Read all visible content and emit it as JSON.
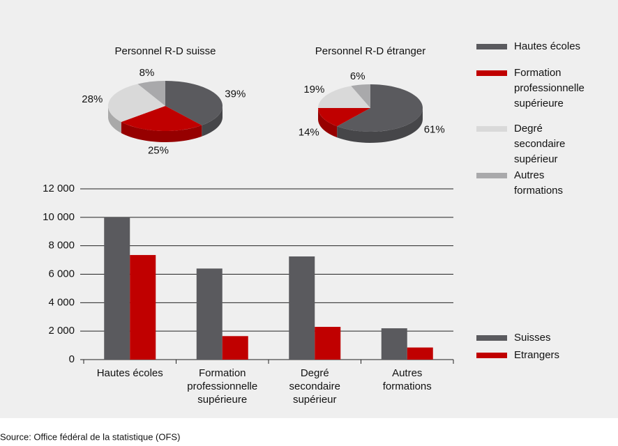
{
  "chart_data": [
    {
      "type": "pie",
      "categories": [
        "Hautes écoles",
        "Formation professionnelle supérieure",
        "Degré secondaire supérieur",
        "Autres formations"
      ],
      "colors": [
        "#5a5a5e",
        "#c00000",
        "#d9d9d9",
        "#a9a9ab"
      ],
      "series": [
        {
          "name": "Personnel R-D suisse",
          "values": [
            39,
            25,
            28,
            8
          ],
          "value_labels": [
            "39%",
            "25%",
            "28%",
            "8%"
          ]
        },
        {
          "name": "Personnel R-D étranger",
          "values": [
            61,
            14,
            19,
            6
          ],
          "value_labels": [
            "61%",
            "14%",
            "19%",
            "6%"
          ]
        }
      ]
    },
    {
      "type": "bar",
      "categories": [
        "Hautes écoles",
        "Formation professionnelle supérieure",
        "Degré secondaire supérieur",
        "Autres formations"
      ],
      "series": [
        {
          "name": "Suisses",
          "color": "#5a5a5e",
          "values": [
            10000,
            6400,
            7250,
            2200
          ]
        },
        {
          "name": "Etrangers",
          "color": "#c00000",
          "values": [
            7350,
            1650,
            2300,
            850
          ]
        }
      ],
      "ylim": [
        0,
        12000
      ],
      "yticks": [
        0,
        {
          "value": 2000,
          "label": "2 000"
        },
        {
          "value": 4000,
          "label": "4 000"
        },
        {
          "value": 6000,
          "label": "6 000"
        },
        {
          "value": 8000,
          "label": "8 000"
        },
        {
          "value": 10000,
          "label": "10 000"
        },
        {
          "value": 12000,
          "label": "12 000"
        }
      ],
      "grid": true
    }
  ],
  "source": "Source: Office fédéral de la statistique (OFS)"
}
